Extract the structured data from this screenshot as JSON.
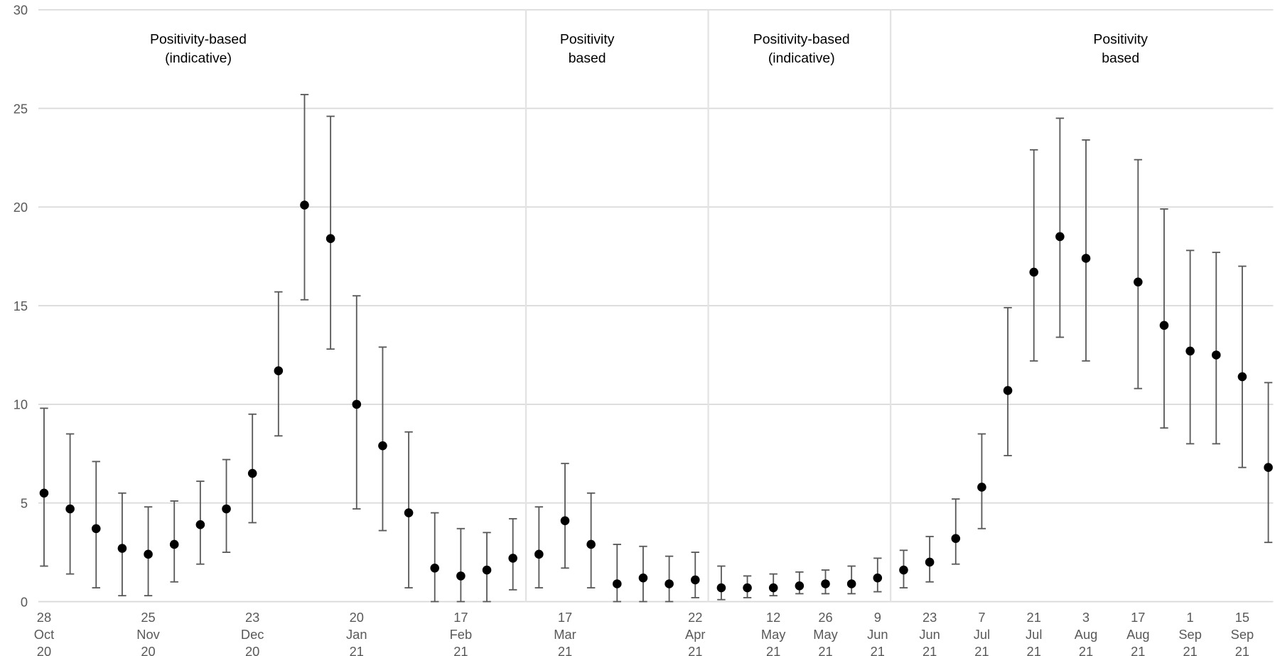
{
  "chart_data": {
    "type": "errorbar-scatter",
    "categories": [
      "28 Oct 20",
      null,
      null,
      null,
      "25 Nov 20",
      null,
      null,
      null,
      "23 Dec 20",
      null,
      null,
      null,
      "20 Jan 21",
      null,
      null,
      null,
      "17 Feb 21",
      null,
      null,
      null,
      "17 Mar 21",
      null,
      null,
      null,
      null,
      "22 Apr 21",
      null,
      null,
      "12 May 21",
      null,
      "26 May 21",
      null,
      "9 Jun 21",
      null,
      "23 Jun 21",
      null,
      "7 Jul 21",
      null,
      "21 Jul 21",
      null,
      "3 Aug 21",
      null,
      "17 Aug 21",
      null,
      "1 Sep 21",
      null,
      "15 Sep 21",
      null
    ],
    "values": [
      5.5,
      4.7,
      3.7,
      2.7,
      2.4,
      2.9,
      3.9,
      4.7,
      6.5,
      11.7,
      20.1,
      18.4,
      10.0,
      7.9,
      4.5,
      1.7,
      1.3,
      1.6,
      2.2,
      2.4,
      4.1,
      2.9,
      0.9,
      1.2,
      0.9,
      1.1,
      0.7,
      0.7,
      0.7,
      0.8,
      0.9,
      0.9,
      1.2,
      1.6,
      2.0,
      3.2,
      5.8,
      10.7,
      16.7,
      18.5,
      17.4,
      null,
      16.2,
      14.0,
      12.7,
      12.5,
      11.4,
      6.8
    ],
    "lower": [
      1.8,
      1.4,
      0.7,
      0.3,
      0.3,
      1.0,
      1.9,
      2.5,
      4.0,
      8.4,
      15.3,
      12.8,
      4.7,
      3.6,
      0.7,
      0,
      0,
      0,
      0.6,
      0.7,
      1.7,
      0.7,
      0,
      0,
      0,
      0.2,
      0.1,
      0.2,
      0.3,
      0.4,
      0.4,
      0.4,
      0.5,
      0.7,
      1.0,
      1.9,
      3.7,
      7.4,
      12.2,
      13.4,
      12.2,
      null,
      10.8,
      8.8,
      8.0,
      8.0,
      6.8,
      3.0
    ],
    "upper": [
      9.8,
      8.5,
      7.1,
      5.5,
      4.8,
      5.1,
      6.1,
      7.2,
      9.5,
      15.7,
      25.7,
      24.6,
      15.5,
      12.9,
      8.6,
      4.5,
      3.7,
      3.5,
      4.2,
      4.8,
      7.0,
      5.5,
      2.9,
      2.8,
      2.3,
      2.5,
      1.8,
      1.3,
      1.4,
      1.5,
      1.6,
      1.8,
      2.2,
      2.6,
      3.3,
      5.2,
      8.5,
      14.9,
      22.9,
      24.5,
      23.4,
      null,
      22.4,
      19.9,
      17.8,
      17.7,
      17.0,
      11.1
    ],
    "color": "#000000",
    "error_color": "#595959",
    "ylim": [
      0,
      30
    ],
    "yticks": [
      0,
      5,
      10,
      15,
      20,
      25,
      30
    ],
    "grid": true,
    "annotations": [
      {
        "lines": [
          "Positivity-based",
          "(indicative)"
        ]
      },
      {
        "lines": [
          "Positivity",
          "based"
        ]
      },
      {
        "lines": [
          "Positivity-based",
          "(indicative)"
        ]
      },
      {
        "lines": [
          "Positivity",
          "based"
        ]
      }
    ]
  }
}
